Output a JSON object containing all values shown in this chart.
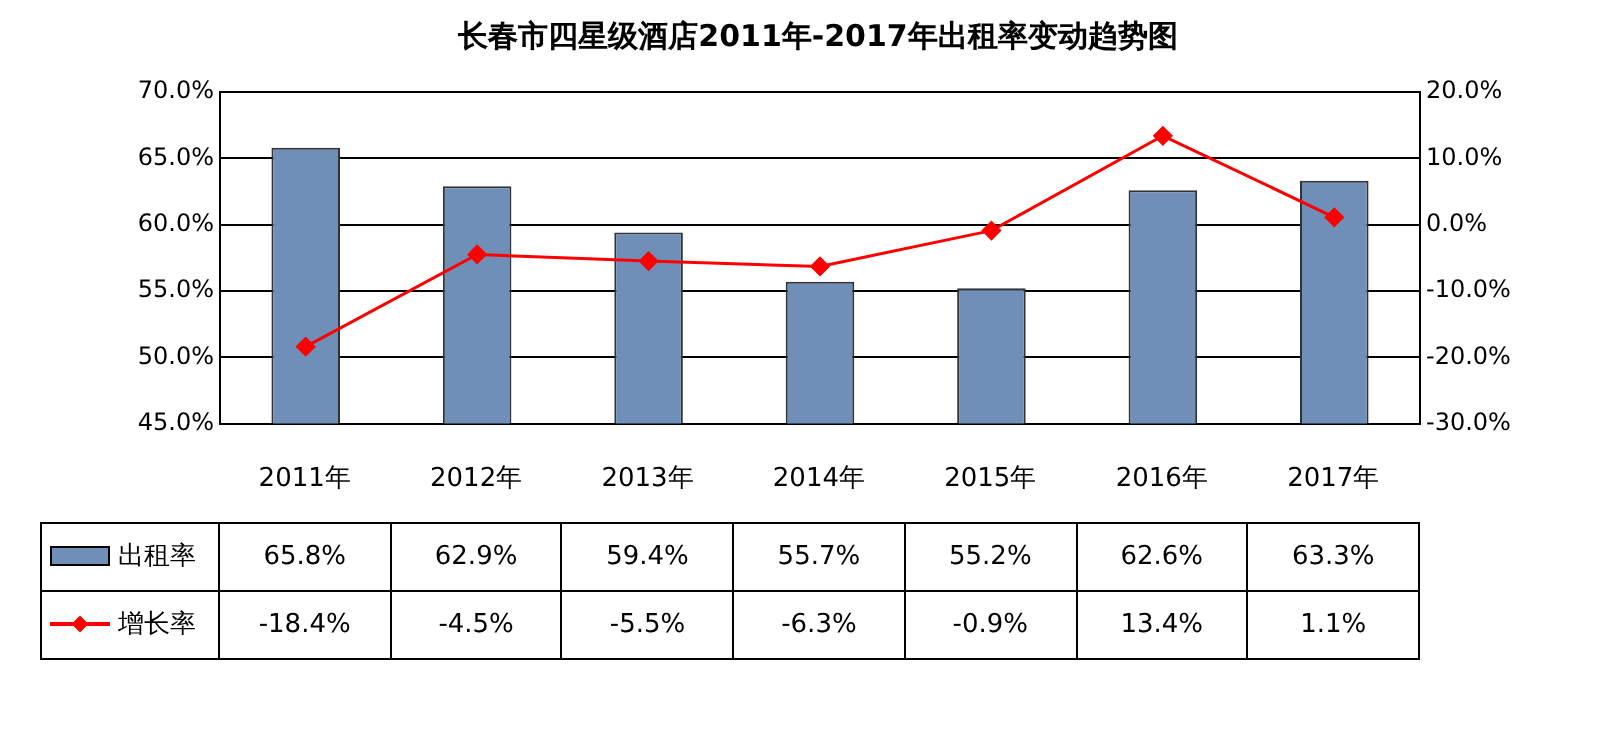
{
  "chart_data": {
    "type": "bar",
    "title": "长春市四星级酒店2011年-2017年出租率变动趋势图",
    "categories": [
      "2011年",
      "2012年",
      "2013年",
      "2014年",
      "2015年",
      "2016年",
      "2017年"
    ],
    "series": [
      {
        "name": "出租率",
        "color": "#6f8fb8",
        "values": [
          65.8,
          62.9,
          59.4,
          55.7,
          55.2,
          62.6,
          63.3
        ],
        "value_labels": [
          "65.8%",
          "62.9%",
          "59.4%",
          "55.7%",
          "55.2%",
          "62.6%",
          "63.3%"
        ]
      },
      {
        "name": "增长率",
        "type": "line",
        "axis": "y2",
        "color": "#ff0000",
        "marker": "diamond",
        "values": [
          -18.4,
          -4.5,
          -5.5,
          -6.3,
          -0.9,
          13.4,
          1.1
        ],
        "value_labels": [
          "-18.4%",
          "-4.5%",
          "-5.5%",
          "-6.3%",
          "-0.9%",
          "13.4%",
          "1.1%"
        ]
      }
    ],
    "ylim": [
      45,
      70
    ],
    "yticks": [
      {
        "value": 45,
        "label": "45.0%"
      },
      {
        "value": 50,
        "label": "50.0%"
      },
      {
        "value": 55,
        "label": "55.0%"
      },
      {
        "value": 60,
        "label": "60.0%"
      },
      {
        "value": 65,
        "label": "65.0%"
      },
      {
        "value": 70,
        "label": "70.0%"
      }
    ],
    "y2lim": [
      -30,
      20
    ],
    "y2ticks": [
      {
        "value": -30,
        "label": "-30.0%"
      },
      {
        "value": -20,
        "label": "-20.0%"
      },
      {
        "value": -10,
        "label": "-10.0%"
      },
      {
        "value": 0,
        "label": "0.0%"
      },
      {
        "value": 10,
        "label": "10.0%"
      },
      {
        "value": 20,
        "label": "20.0%"
      }
    ],
    "grid": "y",
    "legend": "bottom"
  }
}
